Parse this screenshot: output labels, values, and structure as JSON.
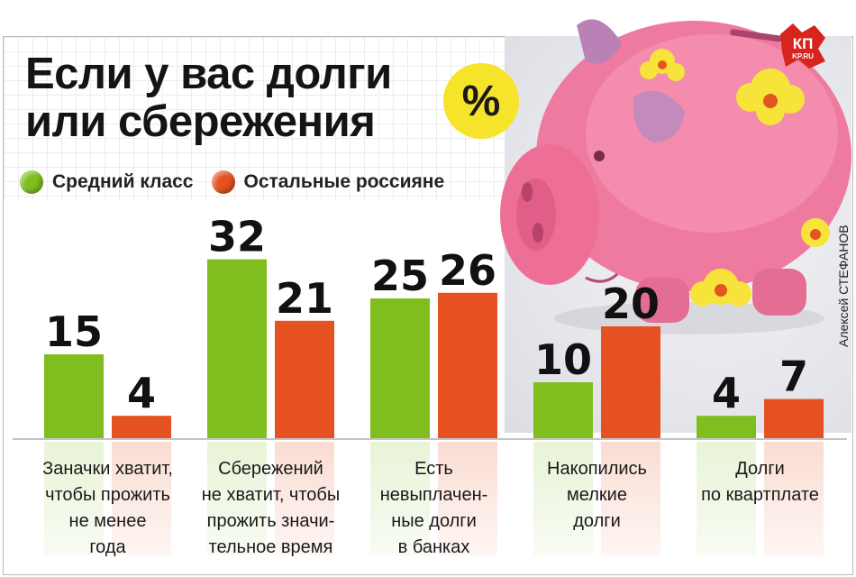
{
  "title_line1": "Если у вас долги",
  "title_line2": "или сбережения",
  "percent_symbol": "%",
  "logo_text": "КП",
  "logo_sub": "KP.RU",
  "photo_credit": "Алексей СТЕФАНОВ",
  "colors": {
    "green": "#7fbe1e",
    "orange": "#e55120",
    "badge": "#f6e42a",
    "pig": "#f07aa0"
  },
  "chart_data": {
    "type": "bar",
    "title": "Если у вас долги или сбережения",
    "unit": "%",
    "categories": [
      "Заначки хватит,\nчтобы прожить\nне менее\nгода",
      "Сбережений\nне хватит, чтобы\nпрожить значи-\nтельное время",
      "Есть\nневыплачен-\nные долги\nв банках",
      "Накопились\nмелкие\nдолги",
      "Долги\nпо квартплате"
    ],
    "series": [
      {
        "name": "Средний класс",
        "color": "#7fbe1e",
        "values": [
          15,
          32,
          25,
          10,
          4
        ]
      },
      {
        "name": "Остальные россияне",
        "color": "#e55120",
        "values": [
          4,
          21,
          26,
          20,
          7
        ]
      }
    ],
    "legend": "top-left",
    "grid": false
  }
}
